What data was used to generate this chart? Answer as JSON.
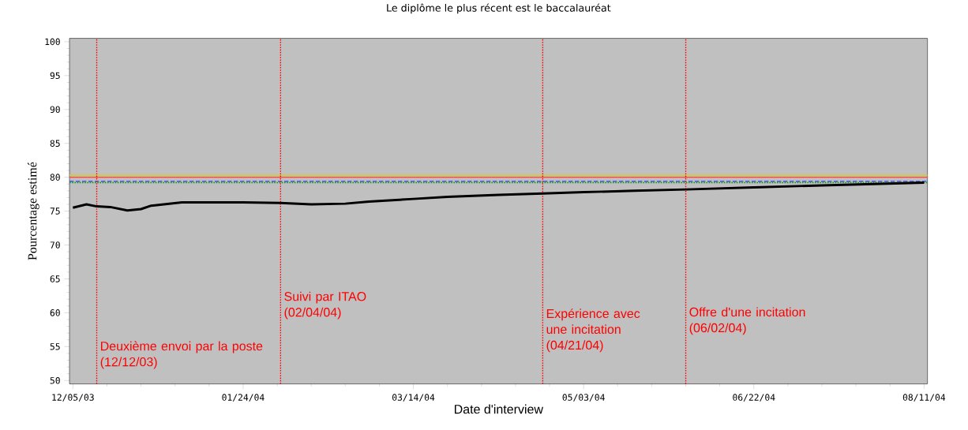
{
  "chart_data": {
    "type": "line",
    "title": "Le diplôme le plus récent est le baccalauréat",
    "xlabel": "Date d'interview",
    "ylabel": "Pourcentage estimé",
    "x": [
      "2003-12-05",
      "2003-12-09",
      "2003-12-12",
      "2003-12-16",
      "2003-12-21",
      "2003-12-25",
      "2003-12-28",
      "2004-01-06",
      "2004-01-12",
      "2004-01-24",
      "2004-02-04",
      "2004-02-13",
      "2004-02-23",
      "2004-03-01",
      "2004-03-14",
      "2004-03-24",
      "2004-04-08",
      "2004-04-21",
      "2004-05-03",
      "2004-05-18",
      "2004-06-02",
      "2004-06-22",
      "2004-07-12",
      "2004-07-27",
      "2004-08-11"
    ],
    "series": [
      {
        "color": "#000000",
        "values": [
          75.5,
          76.0,
          75.7,
          75.6,
          75.1,
          75.3,
          75.8,
          76.3,
          76.3,
          76.3,
          76.2,
          76.0,
          76.1,
          76.4,
          76.8,
          77.1,
          77.4,
          77.6,
          77.8,
          78.0,
          78.2,
          78.5,
          78.8,
          79.0,
          79.2
        ]
      }
    ],
    "xlim": [
      "2003-12-04",
      "2004-08-12"
    ],
    "xticks": [
      {
        "value": "2003-12-05",
        "label": "12/05/03"
      },
      {
        "value": "2004-01-24",
        "label": "01/24/04"
      },
      {
        "value": "2004-03-14",
        "label": "03/14/04"
      },
      {
        "value": "2004-05-03",
        "label": "05/03/04"
      },
      {
        "value": "2004-06-22",
        "label": "06/22/04"
      },
      {
        "value": "2004-08-11",
        "label": "08/11/04"
      }
    ],
    "ylim": [
      49.5,
      100.5
    ],
    "yticks": [
      50,
      55,
      60,
      65,
      70,
      75,
      80,
      85,
      90,
      95,
      100
    ],
    "ref_lines": [
      {
        "axis": "y",
        "value": 80.3,
        "color": "#e8c800",
        "line_style": "solid"
      },
      {
        "axis": "y",
        "value": 80.0,
        "color": "#ff4040",
        "line_style": "solid"
      },
      {
        "axis": "y",
        "value": 79.4,
        "color": "#3030ff",
        "line_style": "dashed"
      },
      {
        "axis": "y",
        "value": 79.2,
        "color": "#00a000",
        "line_style": "dotted"
      },
      {
        "axis": "x",
        "value": "2003-12-12",
        "color": "#ff0000",
        "line_style": "dotted",
        "label": "Deuxième envoi par la poste (12/12/03)"
      },
      {
        "axis": "x",
        "value": "2004-02-04",
        "color": "#ff0000",
        "line_style": "dotted",
        "label": "Suivi par ITAO (02/04/04)"
      },
      {
        "axis": "x",
        "value": "2004-04-21",
        "color": "#ff0000",
        "line_style": "dotted",
        "label": "Expérience avec une incitation (04/21/04)"
      },
      {
        "axis": "x",
        "value": "2004-06-02",
        "color": "#ff0000",
        "line_style": "dotted",
        "label": "Offre d'une incitation (06/02/04)"
      }
    ],
    "marker": "none",
    "line_style": "solid"
  }
}
